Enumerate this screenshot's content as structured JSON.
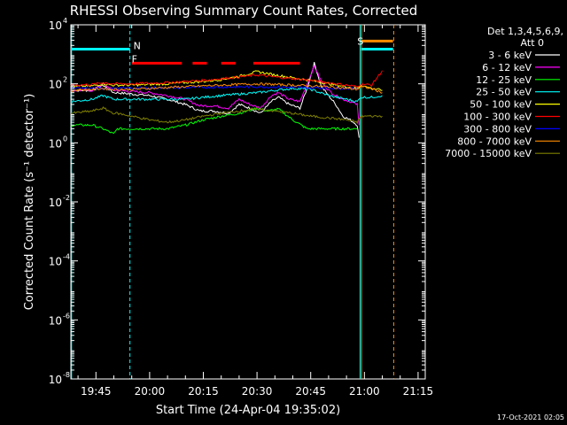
{
  "chart_data": {
    "type": "line",
    "title": "RHESSI Observing Summary Count Rates, Corrected",
    "xlabel": "Start Time (24-Apr-04 19:35:02)",
    "ylabel": "Corrected Count Rate (s⁻¹ detector⁻¹)",
    "xlim_minutes_after_1930": [
      8.0,
      107.0
    ],
    "ylim": [
      1e-08,
      10000
    ],
    "yscale": "log",
    "x_ticks": [
      {
        "label": "19:45",
        "minute": 15
      },
      {
        "label": "20:00",
        "minute": 30
      },
      {
        "label": "20:15",
        "minute": 45
      },
      {
        "label": "20:30",
        "minute": 60
      },
      {
        "label": "20:45",
        "minute": 75
      },
      {
        "label": "21:00",
        "minute": 90
      },
      {
        "label": "21:15",
        "minute": 105
      }
    ],
    "y_ticks": [
      {
        "mantissa": "10",
        "exp": "4",
        "value": 10000
      },
      {
        "mantissa": "10",
        "exp": "2",
        "value": 100
      },
      {
        "mantissa": "10",
        "exp": "0",
        "value": 1
      },
      {
        "mantissa": "10",
        "exp": "-2",
        "value": 0.01
      },
      {
        "mantissa": "10",
        "exp": "-4",
        "value": 0.0001
      },
      {
        "mantissa": "10",
        "exp": "-6",
        "value": 1e-06
      },
      {
        "mantissa": "10",
        "exp": "-8",
        "value": 1e-08
      }
    ],
    "legend": {
      "placement": "right",
      "header_line1": "Det 1,3,4,5,6,9,",
      "header_line2": "Att 0"
    },
    "series": [
      {
        "name": "3 - 6 keV",
        "color": "#ffffff",
        "x": [
          8,
          14,
          17,
          20,
          21,
          25,
          30,
          35,
          40,
          44,
          48,
          52,
          55,
          58,
          61,
          64,
          66,
          69,
          72,
          74,
          76,
          78,
          80,
          82,
          84,
          86,
          87,
          88,
          88.5
        ],
        "y": [
          60,
          60,
          90,
          50,
          50,
          45,
          40,
          30,
          20,
          12,
          12,
          10,
          20,
          15,
          10,
          25,
          35,
          20,
          15,
          70,
          500,
          80,
          40,
          20,
          8,
          6,
          5,
          4,
          1.5
        ]
      },
      {
        "name": "6 - 12 keV",
        "color": "#ff00ff",
        "x": [
          8,
          14,
          17,
          20,
          21,
          25,
          30,
          35,
          40,
          44,
          48,
          52,
          55,
          58,
          61,
          64,
          66,
          69,
          72,
          74,
          76,
          78,
          80,
          82,
          84,
          86,
          88,
          88.5
        ],
        "y": [
          60,
          60,
          100,
          60,
          60,
          55,
          50,
          40,
          30,
          18,
          18,
          15,
          30,
          20,
          15,
          40,
          50,
          30,
          25,
          100,
          400,
          120,
          60,
          40,
          30,
          25,
          20,
          4
        ]
      },
      {
        "name": "12 - 25 keV",
        "color": "#00ff00",
        "x": [
          8,
          14,
          17,
          20,
          21,
          25,
          30,
          35,
          40,
          45,
          50,
          55,
          60,
          63,
          66,
          70,
          74,
          78,
          82,
          85,
          88
        ],
        "y": [
          4,
          4,
          3,
          2,
          3,
          3,
          3,
          3,
          4,
          6,
          8,
          10,
          15,
          12,
          14,
          6,
          3,
          3,
          3,
          3,
          3
        ]
      },
      {
        "name": "25 - 50 keV",
        "color": "#00ffff",
        "x": [
          8,
          14,
          17,
          20,
          21,
          25,
          30,
          35,
          40,
          45,
          50,
          55,
          60,
          65,
          70,
          75,
          80,
          85,
          88,
          89,
          92,
          95
        ],
        "y": [
          25,
          30,
          40,
          30,
          30,
          30,
          30,
          30,
          30,
          35,
          40,
          45,
          50,
          60,
          70,
          65,
          40,
          30,
          25,
          35,
          35,
          40
        ]
      },
      {
        "name": "50 - 100 keV",
        "color": "#ffff00",
        "x": [
          8,
          14,
          17,
          20,
          21,
          25,
          30,
          35,
          40,
          45,
          50,
          55,
          60,
          65,
          70,
          75,
          80,
          85,
          88,
          89,
          92,
          95
        ],
        "y": [
          80,
          85,
          100,
          90,
          90,
          90,
          95,
          100,
          110,
          120,
          140,
          180,
          260,
          200,
          160,
          130,
          100,
          80,
          70,
          90,
          70,
          60
        ]
      },
      {
        "name": "100 - 300 keV",
        "color": "#ff0000",
        "x": [
          8,
          14,
          17,
          20,
          21,
          25,
          30,
          35,
          40,
          45,
          50,
          55,
          60,
          65,
          70,
          75,
          80,
          85,
          88,
          89,
          92,
          95
        ],
        "y": [
          90,
          95,
          110,
          100,
          100,
          100,
          105,
          110,
          120,
          130,
          150,
          170,
          200,
          170,
          150,
          130,
          110,
          90,
          80,
          100,
          90,
          280
        ]
      },
      {
        "name": "300 - 800 keV",
        "color": "#0000ff",
        "x": [
          8,
          20,
          40,
          60,
          80,
          88
        ],
        "y": [
          70,
          70,
          75,
          80,
          72,
          70
        ]
      },
      {
        "name": "800 - 7000 keV",
        "color": "#ff8c00",
        "x": [
          8,
          14,
          17,
          20,
          21,
          25,
          30,
          35,
          40,
          45,
          50,
          55,
          60,
          65,
          70,
          75,
          80,
          85,
          88,
          89,
          92,
          95
        ],
        "y": [
          60,
          65,
          70,
          65,
          65,
          65,
          70,
          75,
          80,
          85,
          90,
          95,
          100,
          95,
          90,
          85,
          80,
          70,
          65,
          80,
          70,
          50
        ]
      },
      {
        "name": "7000 - 15000 keV",
        "color": "#808000",
        "x": [
          8,
          14,
          17,
          20,
          21,
          25,
          30,
          35,
          40,
          45,
          50,
          55,
          60,
          65,
          70,
          75,
          80,
          85,
          88,
          89,
          92,
          95
        ],
        "y": [
          10,
          12,
          15,
          10,
          10,
          8,
          6,
          5,
          6,
          8,
          10,
          12,
          14,
          12,
          10,
          8,
          7,
          6,
          5,
          8,
          8,
          8
        ]
      }
    ],
    "annotations": [
      {
        "text": "N",
        "color": "#00ffff",
        "x": 24.5,
        "y": 2000
      },
      {
        "text": "F",
        "color": "#ff0000",
        "x": 24.0,
        "y": 700
      },
      {
        "text": "S",
        "color": "#ff8c00",
        "x": 87.0,
        "y": 2800
      }
    ],
    "bands": [
      {
        "label": "N",
        "color": "#00ffff",
        "y": 1500,
        "x_segments": [
          [
            8,
            24.5
          ],
          [
            89,
            98
          ]
        ]
      },
      {
        "label": "F",
        "color": "#ff0000",
        "y": 500,
        "x_segments": [
          [
            25,
            39
          ],
          [
            42,
            46
          ],
          [
            50,
            54
          ],
          [
            59,
            72
          ]
        ]
      },
      {
        "label": "S",
        "color": "#ff8c00",
        "y": 2800,
        "x_segments": [
          [
            89,
            98
          ]
        ]
      }
    ],
    "vertical_lines": [
      {
        "x": 8.2,
        "color": "#00ffff",
        "style": "solid"
      },
      {
        "x": 24.5,
        "color": "#00ffff",
        "style": "dashed"
      },
      {
        "x": 88.8,
        "color": "#00ffff",
        "style": "solid"
      },
      {
        "x": 89.2,
        "color": "#ff8c00",
        "style": "solid"
      },
      {
        "x": 98.2,
        "color": "#ff8c00",
        "style": "dashed"
      }
    ],
    "grid": false
  },
  "footer_date": "17-Oct-2021 02:05"
}
